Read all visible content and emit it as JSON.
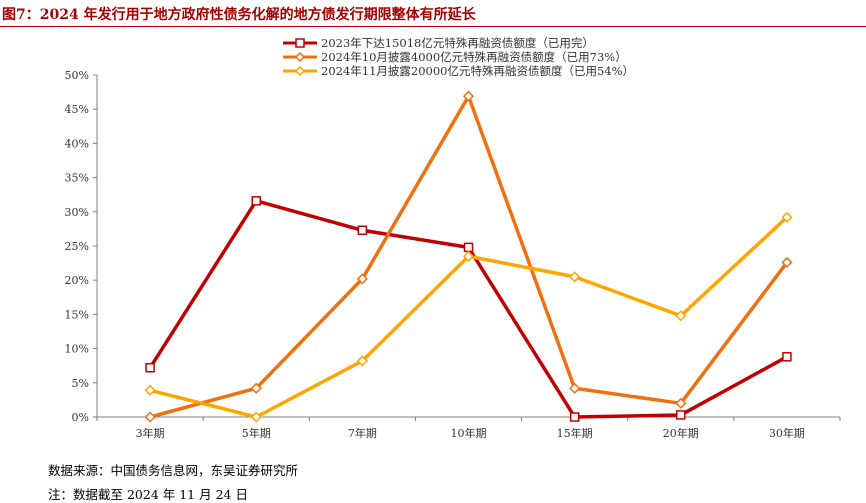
{
  "figure": {
    "title": "图7：2024 年发行用于地方政府性债务化解的地方债发行期限整体有所延长",
    "source": "数据来源：中国债务信息网，东吴证券研究所",
    "note": "注：数据截至 2024 年 11 月 24 日"
  },
  "chart_data": {
    "type": "line",
    "categories": [
      "3年期",
      "5年期",
      "7年期",
      "10年期",
      "15年期",
      "20年期",
      "30年期"
    ],
    "yticks": [
      "0%",
      "5%",
      "10%",
      "15%",
      "20%",
      "25%",
      "30%",
      "35%",
      "40%",
      "45%",
      "50%"
    ],
    "ylim": [
      0,
      50
    ],
    "y_unit": "%",
    "legend_position": "top-center",
    "grid": false,
    "series": [
      {
        "name": "2023年下达15018亿元特殊再融资债额度（已用完）",
        "color": "#c00000",
        "marker": "square",
        "values": [
          7.2,
          31.6,
          27.3,
          24.8,
          0.0,
          0.3,
          8.8
        ]
      },
      {
        "name": "2024年10月披露4000亿元特殊再融资债额度（已用73%）",
        "color": "#f07010",
        "marker": "diamond",
        "values": [
          0.0,
          4.2,
          20.2,
          46.9,
          4.2,
          2.0,
          22.6
        ]
      },
      {
        "name": "2024年11月披露20000亿元特殊再融资债额度（已用54%）",
        "color": "#ffa500",
        "marker": "diamond",
        "values": [
          3.9,
          0.0,
          8.2,
          23.5,
          20.5,
          14.8,
          29.2
        ]
      }
    ]
  }
}
